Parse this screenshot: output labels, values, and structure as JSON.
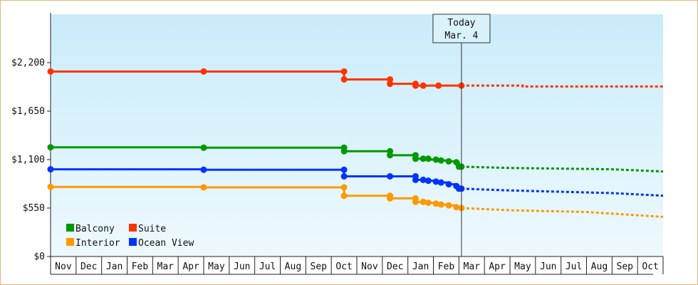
{
  "chart_data": {
    "type": "line",
    "title": "",
    "xlabel": "",
    "ylabel": "",
    "ylim": [
      0,
      2750
    ],
    "y_ticks": [
      {
        "value": 0,
        "label": "$0"
      },
      {
        "value": 550,
        "label": "$550"
      },
      {
        "value": 1100,
        "label": "$1,100"
      },
      {
        "value": 1650,
        "label": "$1,650"
      },
      {
        "value": 2200,
        "label": "$2,200"
      }
    ],
    "x_labels": [
      "Nov",
      "Dec",
      "Jan",
      "Feb",
      "Mar",
      "Apr",
      "May",
      "Jun",
      "Jul",
      "Aug",
      "Sep",
      "Oct",
      "Nov",
      "Dec",
      "Jan",
      "Feb",
      "Mar",
      "Apr",
      "May",
      "Jun",
      "Jul",
      "Aug",
      "Sep",
      "Oct"
    ],
    "x_range": [
      0,
      24
    ],
    "grid": false,
    "legend": "bottom-left",
    "today": {
      "x": 16.1,
      "line1": "Today",
      "line2": "Mar. 4"
    },
    "series": [
      {
        "name": "Suite",
        "color": "#ff3300",
        "points": [
          [
            0,
            2100
          ],
          [
            6.0,
            2100
          ],
          [
            11.5,
            2100
          ],
          [
            11.5,
            2010
          ],
          [
            13.3,
            2010
          ],
          [
            13.3,
            1960
          ],
          [
            14.3,
            1960
          ],
          [
            14.3,
            1940
          ],
          [
            14.6,
            1940
          ],
          [
            15.2,
            1940
          ],
          [
            16.1,
            1940
          ]
        ],
        "markers": [
          [
            0,
            2100
          ],
          [
            6.0,
            2100
          ],
          [
            11.5,
            2100
          ],
          [
            11.5,
            2010
          ],
          [
            13.3,
            2010
          ],
          [
            13.3,
            1960
          ],
          [
            14.3,
            1960
          ],
          [
            14.3,
            1940
          ],
          [
            14.6,
            1940
          ],
          [
            15.2,
            1940
          ],
          [
            16.1,
            1940
          ]
        ],
        "forecast": [
          [
            16.1,
            1940
          ],
          [
            18.5,
            1940
          ],
          [
            18.5,
            1930
          ],
          [
            24,
            1930
          ]
        ]
      },
      {
        "name": "Balcony",
        "color": "#009900",
        "points": [
          [
            0,
            1240
          ],
          [
            6.0,
            1235
          ],
          [
            11.5,
            1235
          ],
          [
            11.5,
            1195
          ],
          [
            13.3,
            1195
          ],
          [
            13.3,
            1150
          ],
          [
            14.3,
            1150
          ],
          [
            14.3,
            1110
          ],
          [
            14.6,
            1110
          ],
          [
            14.8,
            1110
          ],
          [
            14.8,
            1100
          ],
          [
            15.1,
            1100
          ],
          [
            15.3,
            1090
          ],
          [
            15.6,
            1080
          ],
          [
            15.9,
            1070
          ],
          [
            16.0,
            1020
          ],
          [
            16.1,
            1020
          ]
        ],
        "markers": [
          [
            0,
            1240
          ],
          [
            6.0,
            1235
          ],
          [
            11.5,
            1235
          ],
          [
            11.5,
            1195
          ],
          [
            13.3,
            1195
          ],
          [
            13.3,
            1150
          ],
          [
            14.3,
            1150
          ],
          [
            14.3,
            1110
          ],
          [
            14.6,
            1110
          ],
          [
            14.8,
            1110
          ],
          [
            15.1,
            1100
          ],
          [
            15.3,
            1090
          ],
          [
            15.6,
            1080
          ],
          [
            15.9,
            1070
          ],
          [
            16.0,
            1020
          ],
          [
            16.1,
            1020
          ]
        ],
        "forecast": [
          [
            16.1,
            1020
          ],
          [
            18.0,
            1005
          ],
          [
            22.0,
            990
          ],
          [
            24,
            965
          ]
        ]
      },
      {
        "name": "Ocean View",
        "color": "#0033ff",
        "points": [
          [
            0,
            990
          ],
          [
            6.0,
            985
          ],
          [
            11.5,
            985
          ],
          [
            11.5,
            910
          ],
          [
            13.3,
            910
          ],
          [
            14.3,
            910
          ],
          [
            14.3,
            870
          ],
          [
            14.6,
            870
          ],
          [
            14.8,
            860
          ],
          [
            15.1,
            850
          ],
          [
            15.3,
            840
          ],
          [
            15.6,
            820
          ],
          [
            15.9,
            800
          ],
          [
            16.0,
            770
          ],
          [
            16.1,
            770
          ]
        ],
        "markers": [
          [
            0,
            990
          ],
          [
            6.0,
            985
          ],
          [
            11.5,
            985
          ],
          [
            11.5,
            910
          ],
          [
            13.3,
            910
          ],
          [
            14.3,
            910
          ],
          [
            14.3,
            870
          ],
          [
            14.6,
            870
          ],
          [
            14.8,
            860
          ],
          [
            15.1,
            850
          ],
          [
            15.3,
            840
          ],
          [
            15.6,
            820
          ],
          [
            15.9,
            800
          ],
          [
            16.0,
            770
          ],
          [
            16.1,
            770
          ]
        ],
        "forecast": [
          [
            16.1,
            770
          ],
          [
            18.0,
            750
          ],
          [
            22.0,
            720
          ],
          [
            24,
            690
          ]
        ]
      },
      {
        "name": "Interior",
        "color": "#ff9900",
        "points": [
          [
            0,
            790
          ],
          [
            6.0,
            785
          ],
          [
            11.5,
            785
          ],
          [
            11.5,
            690
          ],
          [
            13.3,
            690
          ],
          [
            13.3,
            660
          ],
          [
            14.3,
            660
          ],
          [
            14.3,
            620
          ],
          [
            14.6,
            620
          ],
          [
            14.8,
            610
          ],
          [
            15.1,
            600
          ],
          [
            15.3,
            590
          ],
          [
            15.6,
            580
          ],
          [
            15.9,
            560
          ],
          [
            16.1,
            550
          ]
        ],
        "markers": [
          [
            0,
            790
          ],
          [
            6.0,
            785
          ],
          [
            11.5,
            785
          ],
          [
            11.5,
            690
          ],
          [
            13.3,
            690
          ],
          [
            13.3,
            660
          ],
          [
            14.3,
            660
          ],
          [
            14.3,
            620
          ],
          [
            14.6,
            620
          ],
          [
            14.8,
            610
          ],
          [
            15.1,
            600
          ],
          [
            15.3,
            590
          ],
          [
            15.6,
            580
          ],
          [
            15.9,
            560
          ],
          [
            16.1,
            550
          ]
        ],
        "forecast": [
          [
            16.1,
            550
          ],
          [
            18.0,
            525
          ],
          [
            21.0,
            505
          ],
          [
            24,
            450
          ]
        ]
      }
    ],
    "legend_rows": [
      [
        {
          "name": "Balcony",
          "color": "#009900"
        },
        {
          "name": "Suite",
          "color": "#ff3300"
        }
      ],
      [
        {
          "name": "Interior",
          "color": "#ff9900"
        },
        {
          "name": "Ocean View",
          "color": "#0033ff"
        }
      ]
    ]
  }
}
